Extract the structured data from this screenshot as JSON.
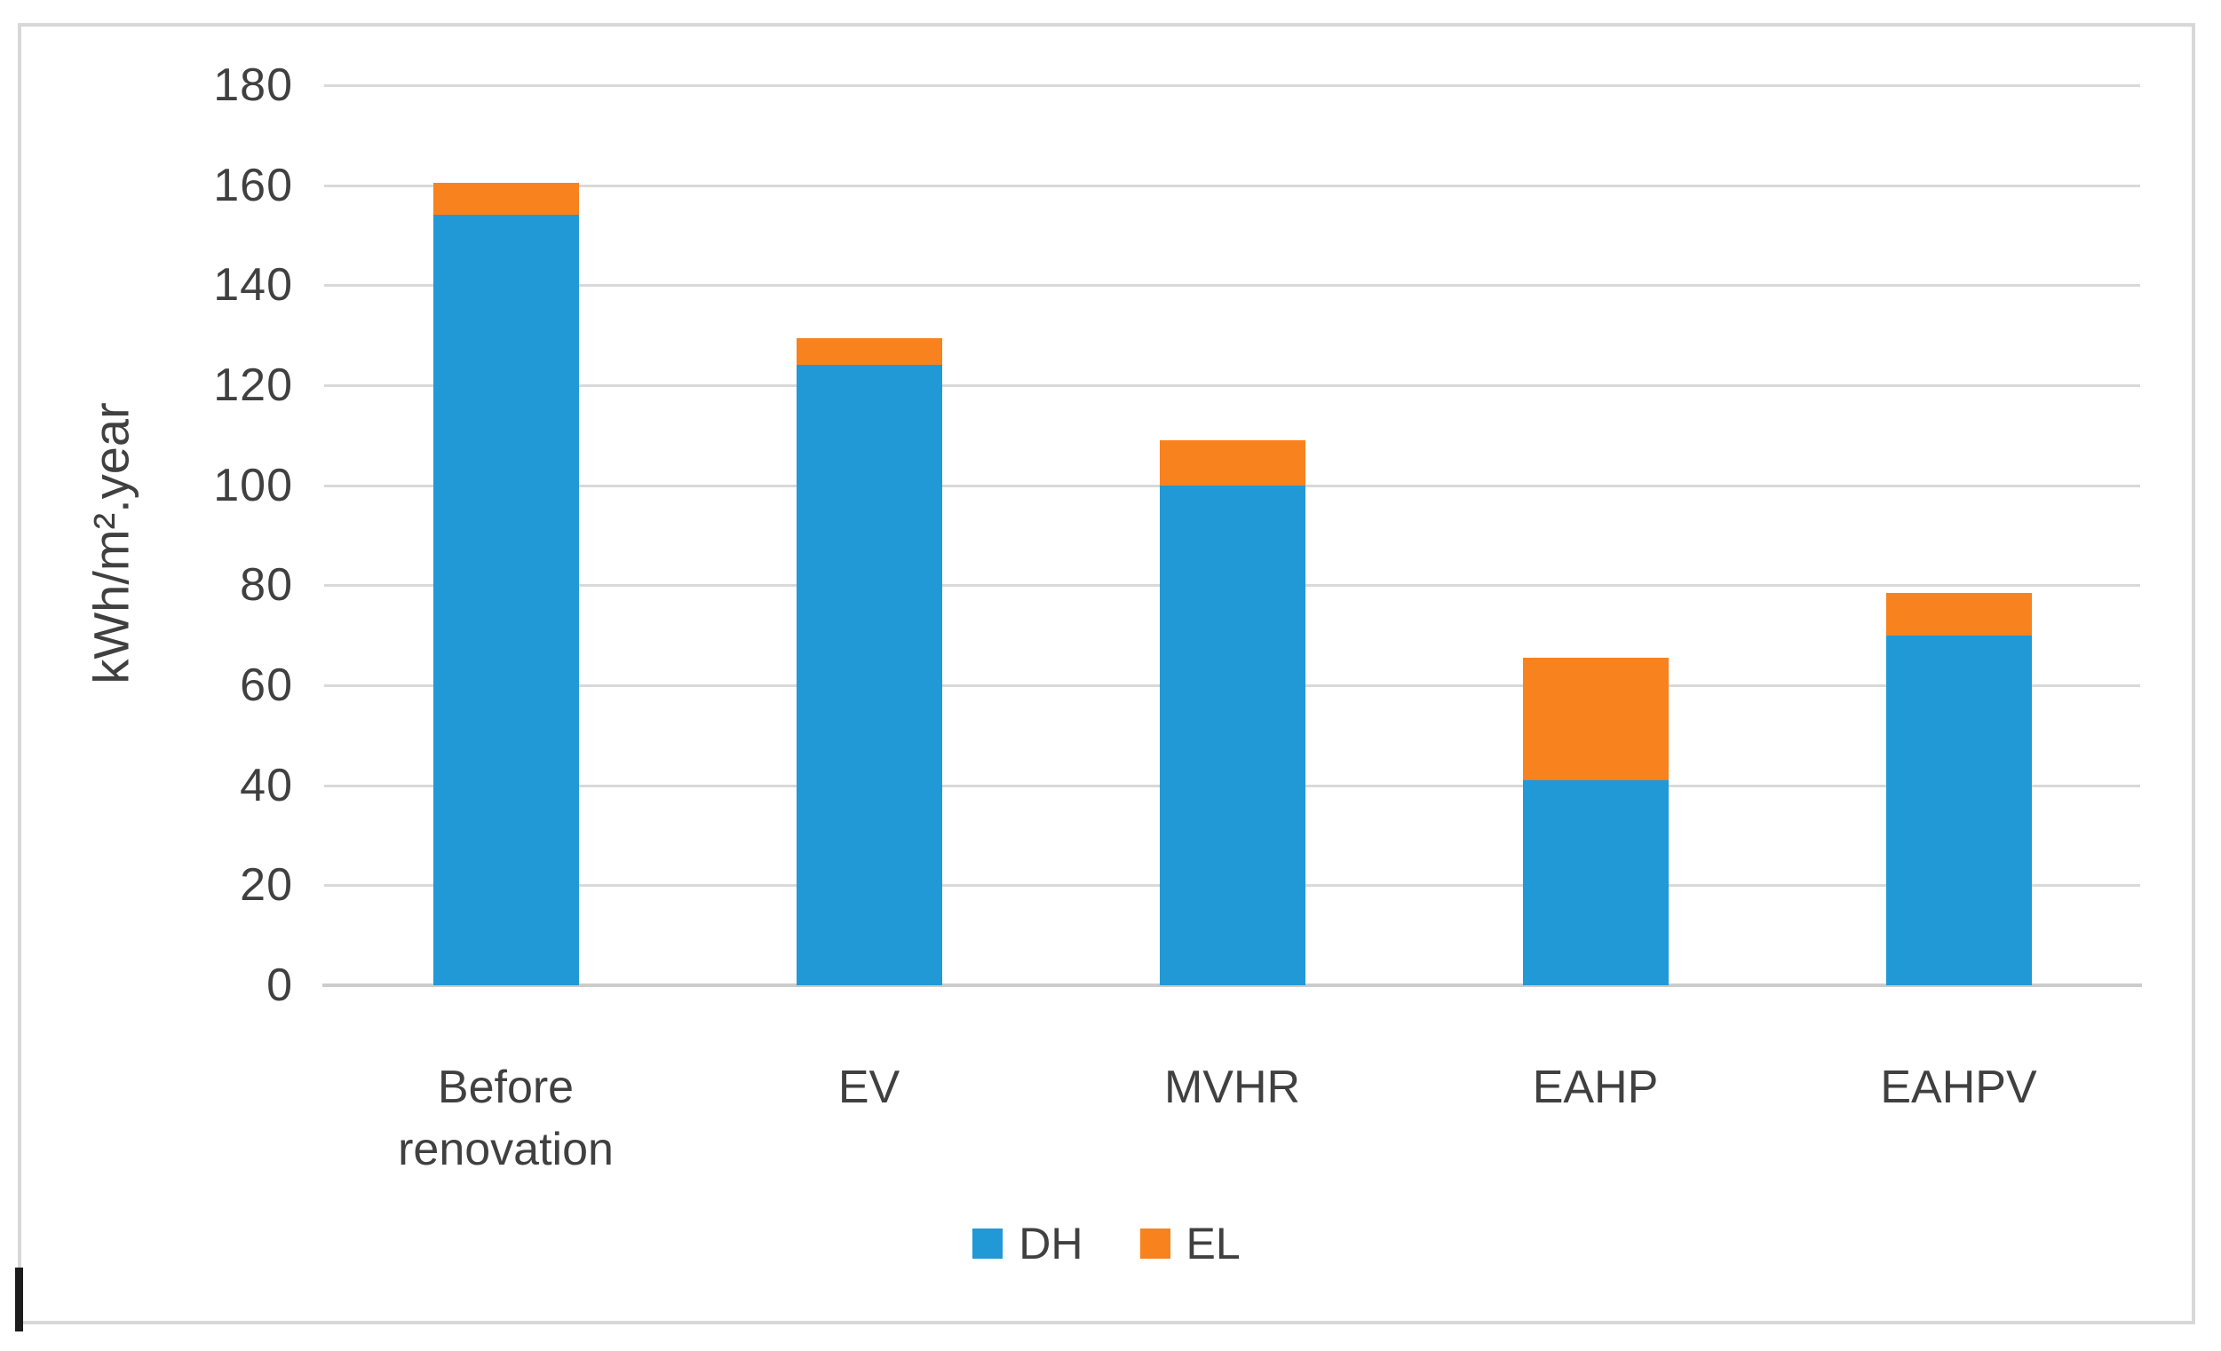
{
  "chart_data": {
    "type": "bar",
    "stacked": true,
    "title": "",
    "xlabel": "",
    "ylabel": "kWh/m².year",
    "categories": [
      "Before renovation",
      "EV",
      "MVHR",
      "EAHP",
      "EAHPV"
    ],
    "series": [
      {
        "name": "DH",
        "color": "#2199d6",
        "values": [
          154,
          124,
          100,
          41,
          70
        ]
      },
      {
        "name": "EL",
        "color": "#f8821e",
        "values": [
          6.5,
          5.5,
          9,
          24.5,
          8.5
        ]
      }
    ],
    "totals": [
      160.5,
      129.5,
      109,
      65.5,
      78.5
    ],
    "ylim": [
      0,
      180
    ],
    "ytick_step": 20,
    "ytick_labels": [
      "0",
      "20",
      "40",
      "60",
      "80",
      "100",
      "120",
      "140",
      "160",
      "180"
    ],
    "grid": true,
    "legend_position": "bottom",
    "legend_entries": [
      {
        "label": "DH",
        "color": "#2199d6"
      },
      {
        "label": "EL",
        "color": "#f8821e"
      }
    ]
  },
  "style_colors": {
    "gridline": "#d9d9d9",
    "axis_line": "#cccccc",
    "text": "#404040",
    "frame_border": "#d8d8d8",
    "background": "#ffffff"
  },
  "artifacts": {
    "text_cursor": "caret"
  }
}
